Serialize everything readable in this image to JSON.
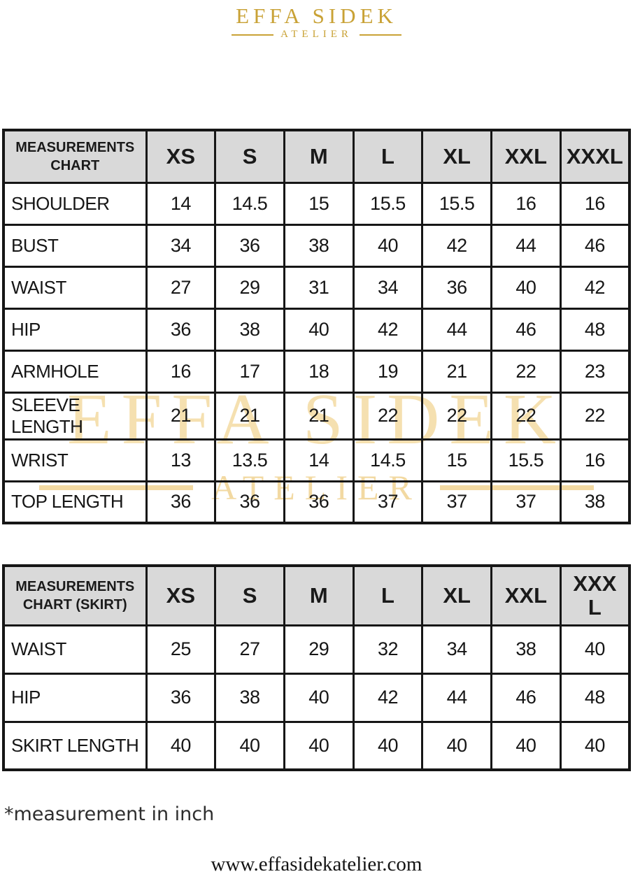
{
  "logo": {
    "brand": "EFFA SIDEK",
    "sub": "ATELIER"
  },
  "watermark": {
    "brand": "EFFA SIDEK",
    "sub": "ATELIER"
  },
  "tables": [
    {
      "title": "MEASUREMENTS CHART",
      "sizes": [
        "XS",
        "S",
        "M",
        "L",
        "XL",
        "XXL",
        "XXXL"
      ],
      "rows": [
        {
          "label": "SHOULDER",
          "values": [
            "14",
            "14.5",
            "15",
            "15.5",
            "15.5",
            "16",
            "16"
          ]
        },
        {
          "label": "BUST",
          "values": [
            "34",
            "36",
            "38",
            "40",
            "42",
            "44",
            "46"
          ]
        },
        {
          "label": "WAIST",
          "values": [
            "27",
            "29",
            "31",
            "34",
            "36",
            "40",
            "42"
          ]
        },
        {
          "label": "HIP",
          "values": [
            "36",
            "38",
            "40",
            "42",
            "44",
            "46",
            "48"
          ]
        },
        {
          "label": "ARMHOLE",
          "values": [
            "16",
            "17",
            "18",
            "19",
            "21",
            "22",
            "23"
          ]
        },
        {
          "label": "SLEEVE LENGTH",
          "values": [
            "21",
            "21",
            "21",
            "22",
            "22",
            "22",
            "22"
          ]
        },
        {
          "label": "WRIST",
          "values": [
            "13",
            "13.5",
            "14",
            "14.5",
            "15",
            "15.5",
            "16"
          ]
        },
        {
          "label": "TOP LENGTH",
          "values": [
            "36",
            "36",
            "36",
            "37",
            "37",
            "37",
            "38"
          ]
        }
      ]
    },
    {
      "title": "MEASUREMENTS CHART (SKIRT)",
      "sizes": [
        "XS",
        "S",
        "M",
        "L",
        "XL",
        "XXL",
        "XXX L"
      ],
      "rows": [
        {
          "label": "WAIST",
          "values": [
            "25",
            "27",
            "29",
            "32",
            "34",
            "38",
            "40"
          ]
        },
        {
          "label": "HIP",
          "values": [
            "36",
            "38",
            "40",
            "42",
            "44",
            "46",
            "48"
          ]
        },
        {
          "label": "SKIRT LENGTH",
          "values": [
            "40",
            "40",
            "40",
            "40",
            "40",
            "40",
            "40"
          ]
        }
      ]
    }
  ],
  "footnote": "*measurement in inch",
  "website": "www.effasidekatelier.com",
  "colors": {
    "brand_gold": "#C9A236",
    "watermark_gold": "#F2D9A2",
    "header_bg": "#d9d9d9",
    "table_border": "#161616"
  }
}
